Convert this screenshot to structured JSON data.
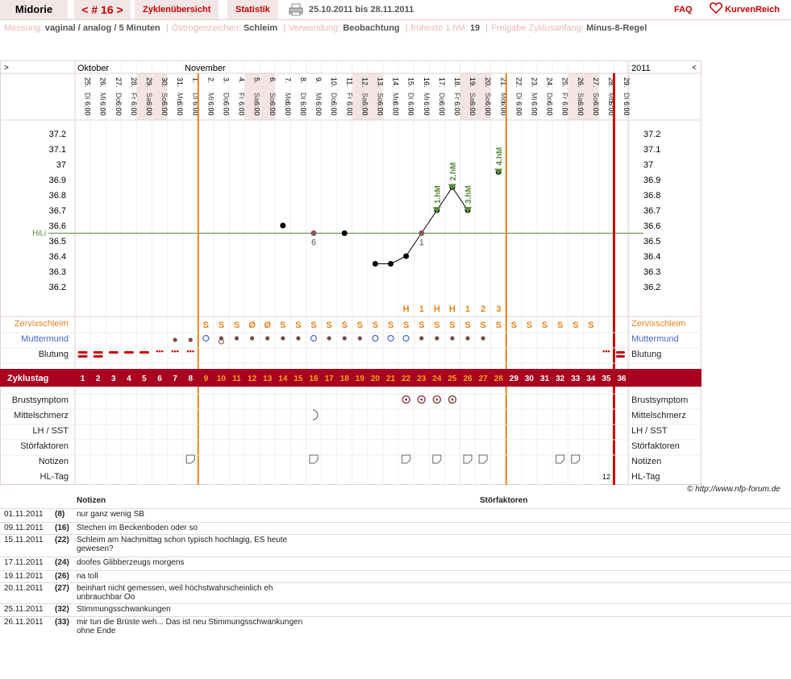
{
  "app": {
    "title": "Midorie",
    "cycle_nav": "< # 16 >",
    "tabs": [
      "Zyklenübersicht",
      "Statistik"
    ],
    "date_range": "25.10.2011 bis 28.11.2011",
    "faq": "FAQ",
    "logo": "KurvenReich"
  },
  "meta": [
    {
      "label": "Messung:",
      "value": "vaginal / analog / 5 Minuten"
    },
    {
      "label": "Östrogenzeichen:",
      "value": "Schleim"
    },
    {
      "label": "Verwendung:",
      "value": "Beobachtung"
    },
    {
      "label": "früheste 1.hM:",
      "value": "19"
    },
    {
      "label": "Freigabe Zyklusanfang:",
      "value": "Minus-8-Regel"
    }
  ],
  "months": {
    "oct": "Oktober",
    "nov": "November",
    "year": "2011",
    "left_arrow": ">",
    "right_arrow": "<"
  },
  "days": [
    {
      "d": "25.",
      "w": "Di"
    },
    {
      "d": "26.",
      "w": "Mi"
    },
    {
      "d": "27.",
      "w": "Do"
    },
    {
      "d": "28.",
      "w": "Fr"
    },
    {
      "d": "29.",
      "w": "Sa"
    },
    {
      "d": "30.",
      "w": "So"
    },
    {
      "d": "31.",
      "w": "Mo"
    },
    {
      "d": "1.",
      "w": "Di"
    },
    {
      "d": "2.",
      "w": "Mi"
    },
    {
      "d": "3.",
      "w": "Do"
    },
    {
      "d": "4.",
      "w": "Fr"
    },
    {
      "d": "5.",
      "w": "Sa"
    },
    {
      "d": "6.",
      "w": "So"
    },
    {
      "d": "7.",
      "w": "Mo"
    },
    {
      "d": "8.",
      "w": "Di"
    },
    {
      "d": "9.",
      "w": "Mi"
    },
    {
      "d": "10.",
      "w": "Do"
    },
    {
      "d": "11.",
      "w": "Fr"
    },
    {
      "d": "12.",
      "w": "Sa"
    },
    {
      "d": "13.",
      "w": "So"
    },
    {
      "d": "14.",
      "w": "Mo"
    },
    {
      "d": "15.",
      "w": "Di"
    },
    {
      "d": "16.",
      "w": "Mi"
    },
    {
      "d": "17.",
      "w": "Do"
    },
    {
      "d": "18.",
      "w": "Fr"
    },
    {
      "d": "19.",
      "w": "Sa"
    },
    {
      "d": "20.",
      "w": "So"
    },
    {
      "d": "21.",
      "w": "Mo"
    },
    {
      "d": "22.",
      "w": "Di"
    },
    {
      "d": "23.",
      "w": "Mi"
    },
    {
      "d": "24.",
      "w": "Do"
    },
    {
      "d": "25.",
      "w": "Fr"
    },
    {
      "d": "26.",
      "w": "Sa"
    },
    {
      "d": "27.",
      "w": "So"
    },
    {
      "d": "28.",
      "w": "Mo"
    },
    {
      "d": "29.",
      "w": "Di"
    }
  ],
  "time": "6:00",
  "temp_labels": [
    "37.2",
    "37.1",
    "37",
    "36.9",
    "36.8",
    "36.7",
    "36.6",
    "36.5",
    "36.4",
    "36.3",
    "36.2"
  ],
  "hili_label": "HiLi",
  "chart_data": {
    "type": "line",
    "x_cycle_days": [
      14,
      16,
      18,
      20,
      21,
      22,
      23,
      24,
      25,
      26,
      28
    ],
    "temps": [
      36.6,
      36.55,
      36.55,
      36.35,
      36.35,
      36.4,
      36.55,
      36.7,
      36.85,
      36.7,
      36.95
    ],
    "connected_days": [
      20,
      21,
      22,
      23,
      24,
      25,
      26
    ],
    "hili": 36.55,
    "ylim": [
      36.1,
      37.3
    ],
    "point_labels": [
      {
        "day": 16,
        "text": "6"
      },
      {
        "day": 23,
        "text": "1"
      }
    ],
    "hm_markers": [
      {
        "day": 24,
        "text": "1.hM"
      },
      {
        "day": 25,
        "text": "2.hM"
      },
      {
        "day": 26,
        "text": "3.hM"
      },
      {
        "day": 28,
        "text": "4.hM"
      }
    ]
  },
  "row_labels": {
    "zervix": "Zervixschleim",
    "muttermund": "Muttermund",
    "blutung": "Blutung",
    "zyklustag": "Zyklustag",
    "brust": "Brustsymptom",
    "mittel": "Mittelschmerz",
    "lh": "LH / SST",
    "stoer": "Störfaktoren",
    "notizen": "Notizen",
    "hltag": "HL-Tag"
  },
  "zervix": [
    "",
    "",
    "",
    "",
    "",
    "",
    "",
    "",
    "S",
    "S",
    "S",
    "Ø",
    "Ø",
    "S",
    "S",
    "S",
    "S",
    "S",
    "S",
    "S",
    "S",
    "S",
    "S",
    "S",
    "S",
    "S",
    "S",
    "S",
    "S",
    "S",
    "S",
    "S",
    "S",
    "S",
    "",
    ""
  ],
  "peak": [
    "",
    "",
    "",
    "",
    "",
    "",
    "",
    "",
    "",
    "",
    "",
    "",
    "",
    "",
    "",
    "",
    "",
    "",
    "",
    "",
    "",
    "H",
    "1",
    "H",
    "H",
    "1",
    "2",
    "3",
    "",
    "",
    "",
    "",
    "",
    "",
    "",
    ""
  ],
  "hl_tag": "12",
  "cycle_days": [
    "1",
    "2",
    "3",
    "4",
    "5",
    "6",
    "7",
    "8",
    "9",
    "10",
    "11",
    "12",
    "13",
    "14",
    "15",
    "16",
    "17",
    "18",
    "19",
    "20",
    "21",
    "22",
    "23",
    "24",
    "25",
    "26",
    "27",
    "28",
    "29",
    "30",
    "31",
    "32",
    "33",
    "34",
    "35",
    "36"
  ],
  "notes_header": {
    "notes": "Notizen",
    "stoer": "Störfaktoren"
  },
  "copyright": "© http://www.nfp-forum.de",
  "notes": [
    {
      "date": "01.11.2011",
      "day": "(8)",
      "text": "nur ganz wenig SB"
    },
    {
      "date": "09.11.2011",
      "day": "(16)",
      "text": "Stechen im Beckenboden oder so"
    },
    {
      "date": "15.11.2011",
      "day": "(22)",
      "text": "Schleim am Nachmittag schon typisch hochlagig, ES heute gewesen?"
    },
    {
      "date": "17.11.2011",
      "day": "(24)",
      "text": "doofes Glibberzeugs morgens"
    },
    {
      "date": "19.11.2011",
      "day": "(26)",
      "text": "na toll"
    },
    {
      "date": "20.11.2011",
      "day": "(27)",
      "text": "beinhart nicht gemessen, weil höchstwahrscheinlich eh unbrauchbar Oo"
    },
    {
      "date": "25.11.2011",
      "day": "(32)",
      "text": "Stimmungsschwankungen"
    },
    {
      "date": "26.11.2011",
      "day": "(33)",
      "text": "mir tun die Brüste weh... Das ist neu Stimmungsschwankungen ohne Ende"
    }
  ],
  "colors": {
    "accent": "#cc0000",
    "orange": "#e8821c",
    "cycle_bar": "#a8001e",
    "green": "#5a8a3c"
  }
}
